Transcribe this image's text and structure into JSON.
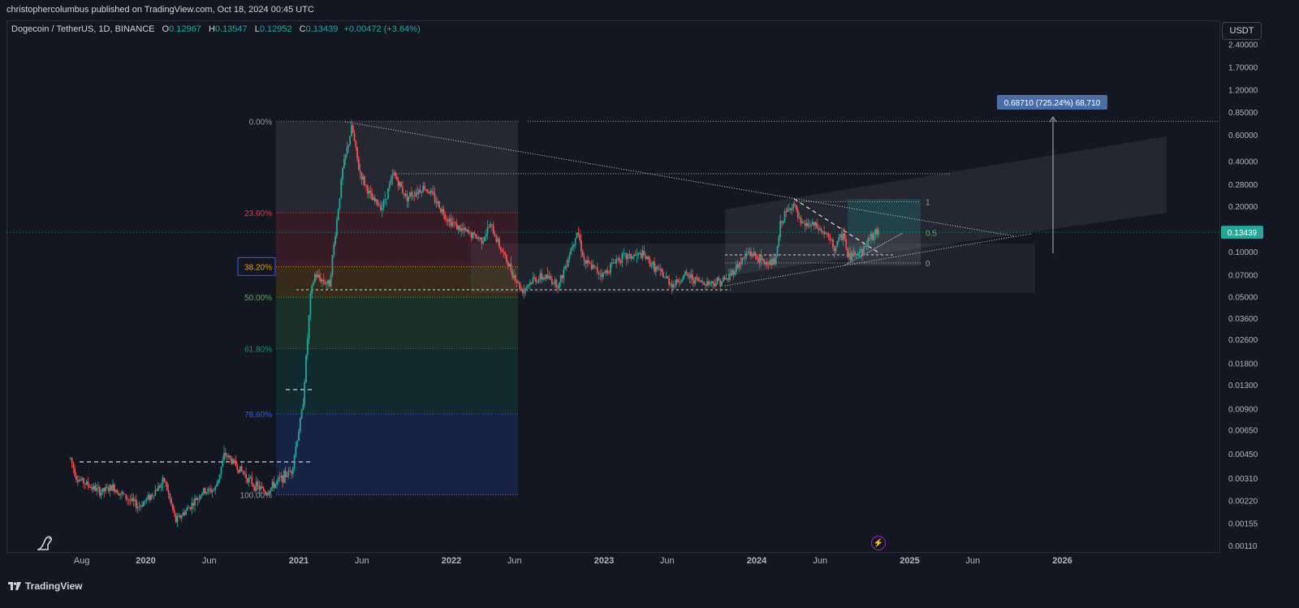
{
  "header": {
    "published": "christophercolumbus published on TradingView.com, Oct 18, 2024 00:45 UTC"
  },
  "legend": {
    "symbol": "Dogecoin / TetherUS, 1D, BINANCE",
    "o_label": "O",
    "o_value": "0.12967",
    "h_label": "H",
    "h_value": "0.13547",
    "l_label": "L",
    "l_value": "0.12952",
    "c_label": "C",
    "c_value": "0.13439",
    "change": "+0.00472 (+3.64%)"
  },
  "currency_button": "USDT",
  "last_price": "0.13439",
  "measure_label": "0.68710 (725.24%) 68,710",
  "footer": {
    "brand": "TradingView"
  },
  "colors": {
    "up": "#26a69a",
    "down": "#ef5350",
    "background": "#131722",
    "last_price_badge": "#26a69a",
    "measure_badge": "#4a6da7"
  },
  "chart_data": {
    "type": "candlestick",
    "y_scale": "log",
    "x_range": [
      "2019-07-01",
      "2026-06-01"
    ],
    "ylim": [
      0.001,
      3.0
    ],
    "y_ticks": [
      "2.40000",
      "1.70000",
      "1.20000",
      "0.85000",
      "0.60000",
      "0.40000",
      "0.28000",
      "0.20000",
      "0.10000",
      "0.07000",
      "0.05000",
      "0.03600",
      "0.02600",
      "0.01800",
      "0.01300",
      "0.00900",
      "0.00650",
      "0.00450",
      "0.00310",
      "0.00220",
      "0.00155",
      "0.00110"
    ],
    "y_tick_values": [
      2.4,
      1.7,
      1.2,
      0.85,
      0.6,
      0.4,
      0.28,
      0.2,
      0.1,
      0.07,
      0.05,
      0.036,
      0.026,
      0.018,
      0.013,
      0.009,
      0.0065,
      0.0045,
      0.0031,
      0.0022,
      0.00155,
      0.0011
    ],
    "x_ticks": [
      {
        "label": "Aug",
        "date": "2019-08-01"
      },
      {
        "label": "2020",
        "date": "2020-01-01"
      },
      {
        "label": "Jun",
        "date": "2020-06-01"
      },
      {
        "label": "2021",
        "date": "2021-01-01"
      },
      {
        "label": "Jun",
        "date": "2021-06-01"
      },
      {
        "label": "2022",
        "date": "2022-01-01"
      },
      {
        "label": "Jun",
        "date": "2022-06-01"
      },
      {
        "label": "2023",
        "date": "2023-01-01"
      },
      {
        "label": "Jun",
        "date": "2023-06-01"
      },
      {
        "label": "2024",
        "date": "2024-01-01"
      },
      {
        "label": "Jun",
        "date": "2024-06-01"
      },
      {
        "label": "2025",
        "date": "2025-01-01"
      },
      {
        "label": "Jun",
        "date": "2025-06-01"
      },
      {
        "label": "2026",
        "date": "2026-01-01"
      }
    ],
    "price_path": [
      [
        "2019-07-05",
        0.0042
      ],
      [
        "2019-07-20",
        0.0031
      ],
      [
        "2019-08-15",
        0.0028
      ],
      [
        "2019-09-15",
        0.0025
      ],
      [
        "2019-10-15",
        0.0027
      ],
      [
        "2019-11-15",
        0.0023
      ],
      [
        "2019-12-15",
        0.002
      ],
      [
        "2020-01-15",
        0.0024
      ],
      [
        "2020-02-15",
        0.003
      ],
      [
        "2020-03-13",
        0.0016
      ],
      [
        "2020-04-15",
        0.002
      ],
      [
        "2020-05-15",
        0.0025
      ],
      [
        "2020-06-15",
        0.0026
      ],
      [
        "2020-07-08",
        0.0045
      ],
      [
        "2020-08-15",
        0.0035
      ],
      [
        "2020-09-15",
        0.0028
      ],
      [
        "2020-10-15",
        0.0025
      ],
      [
        "2020-11-15",
        0.003
      ],
      [
        "2020-12-15",
        0.0035
      ],
      [
        "2021-01-10",
        0.009
      ],
      [
        "2021-01-29",
        0.05
      ],
      [
        "2021-02-08",
        0.07
      ],
      [
        "2021-03-15",
        0.06
      ],
      [
        "2021-04-16",
        0.35
      ],
      [
        "2021-05-08",
        0.68
      ],
      [
        "2021-05-25",
        0.35
      ],
      [
        "2021-06-25",
        0.22
      ],
      [
        "2021-07-20",
        0.2
      ],
      [
        "2021-08-16",
        0.33
      ],
      [
        "2021-09-15",
        0.23
      ],
      [
        "2021-10-28",
        0.27
      ],
      [
        "2021-11-15",
        0.24
      ],
      [
        "2021-12-20",
        0.17
      ],
      [
        "2022-01-22",
        0.14
      ],
      [
        "2022-03-15",
        0.12
      ],
      [
        "2022-04-04",
        0.15
      ],
      [
        "2022-05-10",
        0.09
      ],
      [
        "2022-06-18",
        0.055
      ],
      [
        "2022-07-15",
        0.065
      ],
      [
        "2022-08-15",
        0.068
      ],
      [
        "2022-09-15",
        0.06
      ],
      [
        "2022-10-29",
        0.14
      ],
      [
        "2022-11-15",
        0.085
      ],
      [
        "2022-12-31",
        0.07
      ],
      [
        "2023-02-01",
        0.09
      ],
      [
        "2023-04-03",
        0.095
      ],
      [
        "2023-05-15",
        0.072
      ],
      [
        "2023-06-15",
        0.06
      ],
      [
        "2023-07-15",
        0.07
      ],
      [
        "2023-08-17",
        0.063
      ],
      [
        "2023-09-15",
        0.062
      ],
      [
        "2023-10-20",
        0.065
      ],
      [
        "2023-11-15",
        0.08
      ],
      [
        "2023-12-15",
        0.1
      ],
      [
        "2024-01-15",
        0.085
      ],
      [
        "2024-02-15",
        0.085
      ],
      [
        "2024-02-28",
        0.16
      ],
      [
        "2024-03-28",
        0.21
      ],
      [
        "2024-04-15",
        0.15
      ],
      [
        "2024-05-15",
        0.15
      ],
      [
        "2024-06-15",
        0.13
      ],
      [
        "2024-07-05",
        0.105
      ],
      [
        "2024-07-28",
        0.135
      ],
      [
        "2024-08-05",
        0.09
      ],
      [
        "2024-08-25",
        0.1
      ],
      [
        "2024-09-10",
        0.1
      ],
      [
        "2024-09-28",
        0.125
      ],
      [
        "2024-10-18",
        0.1344
      ]
    ],
    "fibonacci": {
      "levels": [
        {
          "label": "0.00%",
          "price": 0.7376,
          "color": "#787b86"
        },
        {
          "label": "23.60%",
          "price": 0.1815,
          "color": "#f23645"
        },
        {
          "label": "38.20%",
          "price": 0.0795,
          "color": "#ff9800"
        },
        {
          "label": "50.00%",
          "price": 0.0496,
          "color": "#4caf50"
        },
        {
          "label": "61.80%",
          "price": 0.0226,
          "color": "#089981"
        },
        {
          "label": "78.60%",
          "price": 0.0083,
          "color": "#2962ff"
        },
        {
          "label": "100.00%",
          "price": 0.0024,
          "color": "#787b86"
        }
      ],
      "x_start": "2021-01-01",
      "x_end": "2022-06-15"
    },
    "fib_right": [
      {
        "label": "1",
        "price": 0.215
      },
      {
        "label": "0.5",
        "price": 0.134
      },
      {
        "label": "0",
        "price": 0.084
      }
    ],
    "last_price": 0.13439,
    "target_price": 0.6871,
    "target_change_pct": 725.24
  }
}
